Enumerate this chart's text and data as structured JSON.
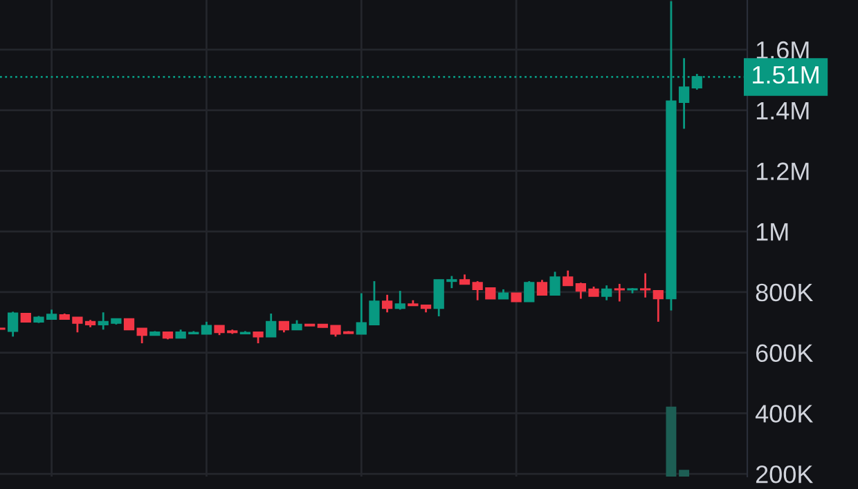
{
  "chart_data": {
    "type": "candlestick",
    "categories": [
      null,
      null,
      null,
      null,
      null,
      null,
      null,
      null,
      null,
      null,
      null,
      null,
      null,
      null,
      null,
      null,
      null,
      null,
      null,
      null,
      null,
      null,
      null,
      null,
      null,
      null,
      null,
      null,
      null,
      null,
      null,
      null,
      null,
      null,
      null,
      null,
      null,
      null,
      null,
      null,
      null,
      null,
      null,
      null,
      null,
      null,
      null,
      null,
      null,
      null,
      null,
      null,
      null,
      null,
      null
    ],
    "ohlc": [
      [
        680000,
        681000,
        677000,
        678000
      ],
      [
        671000,
        735000,
        653000,
        730000
      ],
      [
        729000,
        730000,
        701000,
        702000
      ],
      [
        702000,
        721000,
        698000,
        716000
      ],
      [
        711000,
        742000,
        710000,
        726000
      ],
      [
        724000,
        729000,
        710000,
        711000
      ],
      [
        716000,
        717000,
        667000,
        698000
      ],
      [
        702000,
        708000,
        684000,
        693000
      ],
      [
        693000,
        733000,
        676000,
        702000
      ],
      [
        698000,
        712000,
        693000,
        711000
      ],
      [
        711000,
        712000,
        675000,
        676000
      ],
      [
        680000,
        681000,
        631000,
        658000
      ],
      [
        658000,
        671000,
        657000,
        667000
      ],
      [
        667000,
        668000,
        644000,
        649000
      ],
      [
        649000,
        676000,
        648000,
        667000
      ],
      [
        663000,
        671000,
        661000,
        666000
      ],
      [
        662000,
        702000,
        661000,
        689000
      ],
      [
        689000,
        690000,
        658000,
        667000
      ],
      [
        671000,
        676000,
        662000,
        667000
      ],
      [
        663000,
        671000,
        662000,
        666000
      ],
      [
        667000,
        668000,
        631000,
        653000
      ],
      [
        653000,
        729000,
        652000,
        702000
      ],
      [
        702000,
        703000,
        667000,
        676000
      ],
      [
        676000,
        707000,
        675000,
        693000
      ],
      [
        693000,
        694000,
        688000,
        689000
      ],
      [
        693000,
        694000,
        683000,
        684000
      ],
      [
        689000,
        690000,
        653000,
        662000
      ],
      [
        668000,
        671000,
        663000,
        664000
      ],
      [
        662000,
        796000,
        661000,
        698000
      ],
      [
        693000,
        836000,
        692000,
        769000
      ],
      [
        769000,
        791000,
        733000,
        747000
      ],
      [
        747000,
        804000,
        742000,
        760000
      ],
      [
        760000,
        773000,
        755000,
        756000
      ],
      [
        756000,
        757000,
        733000,
        747000
      ],
      [
        747000,
        841000,
        720000,
        840000
      ],
      [
        836000,
        853000,
        813000,
        840000
      ],
      [
        840000,
        858000,
        826000,
        827000
      ],
      [
        831000,
        836000,
        773000,
        809000
      ],
      [
        813000,
        814000,
        777000,
        778000
      ],
      [
        778000,
        809000,
        777000,
        796000
      ],
      [
        796000,
        797000,
        768000,
        769000
      ],
      [
        769000,
        836000,
        768000,
        831000
      ],
      [
        831000,
        840000,
        790000,
        791000
      ],
      [
        791000,
        867000,
        790000,
        849000
      ],
      [
        849000,
        871000,
        821000,
        822000
      ],
      [
        827000,
        831000,
        778000,
        804000
      ],
      [
        809000,
        818000,
        786000,
        787000
      ],
      [
        787000,
        822000,
        773000,
        809000
      ],
      [
        810000,
        827000,
        769000,
        808000
      ],
      [
        808000,
        813000,
        796000,
        810000
      ],
      [
        810000,
        862000,
        782000,
        808000
      ],
      [
        804000,
        805000,
        702000,
        779000
      ],
      [
        779000,
        1760000,
        739000,
        1430000
      ],
      [
        1427000,
        1572000,
        1339000,
        1476000
      ],
      [
        1475000,
        1520000,
        1468000,
        1510000
      ]
    ],
    "colors": [
      "#f23645",
      "#089981",
      "#f23645",
      "#089981",
      "#089981",
      "#f23645",
      "#f23645",
      "#f23645",
      "#089981",
      "#089981",
      "#f23645",
      "#f23645",
      "#089981",
      "#f23645",
      "#089981",
      "#089981",
      "#089981",
      "#f23645",
      "#f23645",
      "#089981",
      "#f23645",
      "#089981",
      "#f23645",
      "#089981",
      "#f23645",
      "#f23645",
      "#f23645",
      "#f23645",
      "#089981",
      "#089981",
      "#f23645",
      "#089981",
      "#f23645",
      "#f23645",
      "#089981",
      "#089981",
      "#f23645",
      "#f23645",
      "#f23645",
      "#089981",
      "#f23645",
      "#089981",
      "#f23645",
      "#089981",
      "#f23645",
      "#f23645",
      "#f23645",
      "#089981",
      "#f23645",
      "#089981",
      "#f23645",
      "#f23645",
      "#089981",
      "#089981",
      "#089981"
    ],
    "series": [
      {
        "type": "bar",
        "color": "#1d5e54",
        "values": [
          null,
          null,
          null,
          null,
          null,
          null,
          null,
          null,
          null,
          null,
          null,
          null,
          null,
          null,
          null,
          null,
          null,
          null,
          null,
          null,
          null,
          null,
          null,
          null,
          null,
          null,
          null,
          null,
          null,
          null,
          null,
          null,
          null,
          null,
          null,
          null,
          null,
          null,
          null,
          null,
          null,
          null,
          null,
          null,
          null,
          null,
          null,
          null,
          null,
          null,
          null,
          null,
          422000,
          213000,
          null
        ]
      }
    ],
    "ylim": [
      191000,
      1764000
    ],
    "yticks": [
      {
        "value": 200000,
        "label": "200K"
      },
      {
        "value": 400000,
        "label": "400K"
      },
      {
        "value": 600000,
        "label": "600K"
      },
      {
        "value": 800000,
        "label": "800K"
      },
      {
        "value": 1000000,
        "label": "1M"
      },
      {
        "value": 1200000,
        "label": "1.2M"
      },
      {
        "value": 1400000,
        "label": "1.4M"
      },
      {
        "value": 1600000,
        "label": "1.6M"
      }
    ],
    "ref_lines": [
      {
        "axis": "y",
        "value": 1510000,
        "label": "1.51M",
        "color": "#089981",
        "line_style": "dotted"
      }
    ],
    "grid": true,
    "tick_labels": "y"
  }
}
